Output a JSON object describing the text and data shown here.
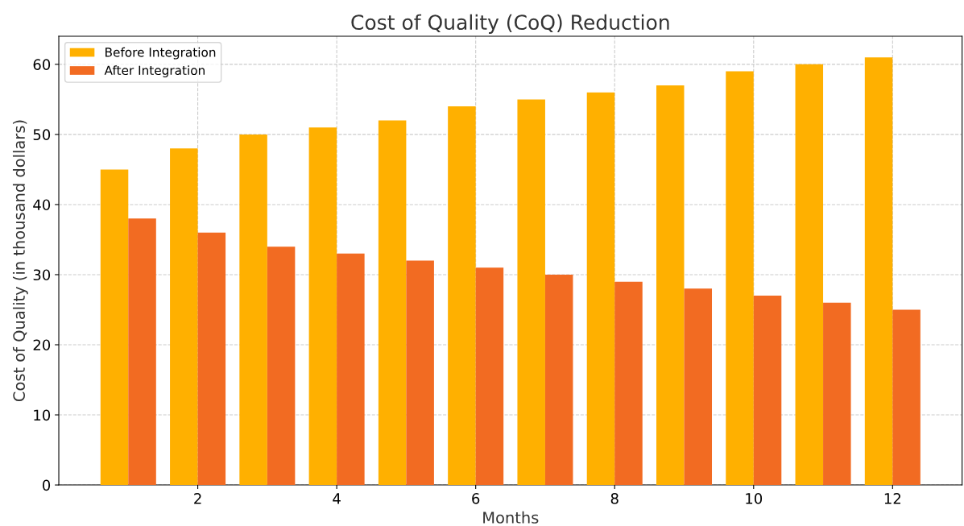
{
  "chart_data": {
    "type": "bar",
    "title": "Cost of Quality (CoQ) Reduction",
    "xlabel": "Months",
    "ylabel": "Cost of Quality (in thousand dollars)",
    "x": [
      1,
      2,
      3,
      4,
      5,
      6,
      7,
      8,
      9,
      10,
      11,
      12
    ],
    "series": [
      {
        "name": "Before Integration",
        "color": "#ffb000",
        "values": [
          45,
          48,
          50,
          51,
          52,
          54,
          55,
          56,
          57,
          59,
          60,
          61
        ]
      },
      {
        "name": "After Integration",
        "color": "#f26b22",
        "values": [
          38,
          36,
          34,
          33,
          32,
          31,
          30,
          29,
          28,
          27,
          26,
          25
        ]
      }
    ],
    "xlim": [
      0,
      13
    ],
    "xticks": [
      2,
      4,
      6,
      8,
      10,
      12
    ],
    "ylim": [
      0,
      64
    ],
    "yticks": [
      0,
      10,
      20,
      30,
      40,
      50,
      60
    ],
    "grid": true,
    "legend": "top left"
  }
}
